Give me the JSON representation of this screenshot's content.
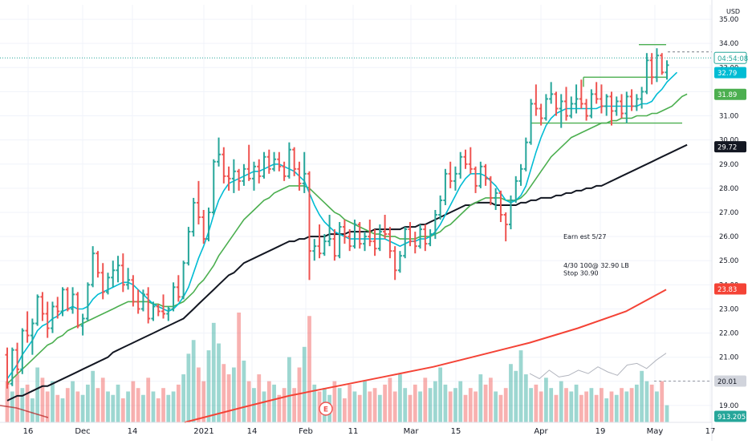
{
  "chart_data": {
    "type": "ohlc",
    "symbol_currency": "USD",
    "x_tick_labels": [
      "16",
      "Dec",
      "14",
      "2021",
      "14",
      "Feb",
      "11",
      "Mar",
      "15",
      "Apr",
      "19",
      "May",
      "17"
    ],
    "y_tick_labels": [
      "19.00",
      "20.00",
      "21.00",
      "22.00",
      "23.00",
      "24.00",
      "25.00",
      "26.00",
      "27.00",
      "28.00",
      "29.00",
      "30.00",
      "31.00",
      "32.00",
      "33.00",
      "34.00",
      "35.00"
    ],
    "ylim": [
      18.3,
      35.6
    ],
    "price_badges": [
      {
        "label": "04:54:08",
        "value": 33.4,
        "color": "#ffffff",
        "text_color": "#26a69a",
        "outline": true
      },
      {
        "label": "32.79",
        "value": 32.79,
        "color": "#00bcd4",
        "text_color": "#ffffff"
      },
      {
        "label": "31.89",
        "value": 31.89,
        "color": "#4caf50",
        "text_color": "#ffffff"
      },
      {
        "label": "29.72",
        "value": 29.72,
        "color": "#131722",
        "text_color": "#ffffff"
      },
      {
        "label": "23.83",
        "value": 23.83,
        "color": "#f44336",
        "text_color": "#ffffff"
      },
      {
        "label": "20.01",
        "value": 20.01,
        "color": "#d1d4dc",
        "text_color": "#131722"
      },
      {
        "label": "913.205K",
        "value": 18.55,
        "color": "#26a69a",
        "text_color": "#ffffff"
      }
    ],
    "annotations": [
      {
        "text": "Earn est 5/27",
        "value": 26.0
      },
      {
        "text": "4/30 100@ 32.90 LB",
        "value": 24.8
      },
      {
        "text": "Stop 30.90",
        "value": 24.5
      }
    ],
    "earnings_marker": "E",
    "bars": [
      [
        21.1,
        21.4,
        19.7,
        19.9
      ],
      [
        19.9,
        21.4,
        19.8,
        21.3
      ],
      [
        21.3,
        21.6,
        20.3,
        20.5
      ],
      [
        20.5,
        22.2,
        20.3,
        22.1
      ],
      [
        22.1,
        22.9,
        21.6,
        21.9
      ],
      [
        21.9,
        22.6,
        21.1,
        22.4
      ],
      [
        22.4,
        23.6,
        22.3,
        23.5
      ],
      [
        23.5,
        23.7,
        22.5,
        22.8
      ],
      [
        22.8,
        23.3,
        21.8,
        22.2
      ],
      [
        22.2,
        23.3,
        22.0,
        23.1
      ],
      [
        23.1,
        23.5,
        22.6,
        22.9
      ],
      [
        22.9,
        23.9,
        22.7,
        23.8
      ],
      [
        23.8,
        23.9,
        22.9,
        23.0
      ],
      [
        23.0,
        23.9,
        22.8,
        23.6
      ],
      [
        23.6,
        23.7,
        22.2,
        22.3
      ],
      [
        22.3,
        22.8,
        21.9,
        22.6
      ],
      [
        22.6,
        24.1,
        22.5,
        24.0
      ],
      [
        24.0,
        25.6,
        23.9,
        25.3
      ],
      [
        25.3,
        25.4,
        24.3,
        24.5
      ],
      [
        24.5,
        24.9,
        23.4,
        23.7
      ],
      [
        23.7,
        24.5,
        23.6,
        24.3
      ],
      [
        24.3,
        25.0,
        23.9,
        24.6
      ],
      [
        24.6,
        25.2,
        24.1,
        24.8
      ],
      [
        24.8,
        25.3,
        23.7,
        24.0
      ],
      [
        24.0,
        24.7,
        23.8,
        24.2
      ],
      [
        24.2,
        24.4,
        23.1,
        23.3
      ],
      [
        23.3,
        23.8,
        22.8,
        23.0
      ],
      [
        23.0,
        23.8,
        22.9,
        23.6
      ],
      [
        23.6,
        23.9,
        22.4,
        22.6
      ],
      [
        22.6,
        23.3,
        22.5,
        23.1
      ],
      [
        23.1,
        23.2,
        22.7,
        22.9
      ],
      [
        22.9,
        23.6,
        22.6,
        22.8
      ],
      [
        22.8,
        23.1,
        22.5,
        23.0
      ],
      [
        23.0,
        24.1,
        22.9,
        23.9
      ],
      [
        23.9,
        24.4,
        23.3,
        23.5
      ],
      [
        23.5,
        25.0,
        23.4,
        24.9
      ],
      [
        24.9,
        26.4,
        24.8,
        26.2
      ],
      [
        26.2,
        27.6,
        26.0,
        27.4
      ],
      [
        27.4,
        28.3,
        26.5,
        26.8
      ],
      [
        26.8,
        27.1,
        25.7,
        25.9
      ],
      [
        25.9,
        27.2,
        25.8,
        27.0
      ],
      [
        27.0,
        29.2,
        26.9,
        29.1
      ],
      [
        29.1,
        30.1,
        28.9,
        29.4
      ],
      [
        29.4,
        29.7,
        28.2,
        28.5
      ],
      [
        28.5,
        28.9,
        27.9,
        28.4
      ],
      [
        28.4,
        29.2,
        27.8,
        28.7
      ],
      [
        28.7,
        28.8,
        27.9,
        28.3
      ],
      [
        28.3,
        29.0,
        28.1,
        28.8
      ],
      [
        28.8,
        29.8,
        28.3,
        28.4
      ],
      [
        28.4,
        29.1,
        27.9,
        28.9
      ],
      [
        28.9,
        29.2,
        28.2,
        28.5
      ],
      [
        28.5,
        29.5,
        28.4,
        29.3
      ],
      [
        29.3,
        29.6,
        28.6,
        28.8
      ],
      [
        28.8,
        29.5,
        28.7,
        29.2
      ],
      [
        29.2,
        29.5,
        28.7,
        28.9
      ],
      [
        28.9,
        29.1,
        28.3,
        28.5
      ],
      [
        28.5,
        29.9,
        28.4,
        29.6
      ],
      [
        29.6,
        29.7,
        28.5,
        28.8
      ],
      [
        28.8,
        29.1,
        27.9,
        28.2
      ],
      [
        28.2,
        29.5,
        27.8,
        28.6
      ],
      [
        28.6,
        28.7,
        24.2,
        25.4
      ],
      [
        25.4,
        25.9,
        25.0,
        25.6
      ],
      [
        25.6,
        26.5,
        25.1,
        25.3
      ],
      [
        25.3,
        26.1,
        25.2,
        25.8
      ],
      [
        25.8,
        26.9,
        25.6,
        25.9
      ],
      [
        25.9,
        26.3,
        25.0,
        25.2
      ],
      [
        25.2,
        26.6,
        25.1,
        26.4
      ],
      [
        26.4,
        26.7,
        25.7,
        26.0
      ],
      [
        26.0,
        26.3,
        25.4,
        25.6
      ],
      [
        25.6,
        26.7,
        25.5,
        26.5
      ],
      [
        26.5,
        26.6,
        25.5,
        25.7
      ],
      [
        25.7,
        26.2,
        25.4,
        26.0
      ],
      [
        26.0,
        26.7,
        25.6,
        25.8
      ],
      [
        25.8,
        26.3,
        25.2,
        25.5
      ],
      [
        25.5,
        26.5,
        25.4,
        26.2
      ],
      [
        26.2,
        26.9,
        25.9,
        26.1
      ],
      [
        26.1,
        26.4,
        25.1,
        25.4
      ],
      [
        25.4,
        25.6,
        24.2,
        24.6
      ],
      [
        24.6,
        25.4,
        24.5,
        25.2
      ],
      [
        25.2,
        26.4,
        25.1,
        26.3
      ],
      [
        26.3,
        26.6,
        25.6,
        25.8
      ],
      [
        25.8,
        26.2,
        25.3,
        25.6
      ],
      [
        25.6,
        26.5,
        25.5,
        26.3
      ],
      [
        26.3,
        26.5,
        25.4,
        25.7
      ],
      [
        25.7,
        26.3,
        25.6,
        26.1
      ],
      [
        26.1,
        27.1,
        25.9,
        26.9
      ],
      [
        26.9,
        27.7,
        26.7,
        27.5
      ],
      [
        27.5,
        28.8,
        27.3,
        28.6
      ],
      [
        28.6,
        29.1,
        28.0,
        28.3
      ],
      [
        28.3,
        28.9,
        27.9,
        28.6
      ],
      [
        28.6,
        29.5,
        28.4,
        29.3
      ],
      [
        29.3,
        29.6,
        28.8,
        29.0
      ],
      [
        29.0,
        29.7,
        28.6,
        28.8
      ],
      [
        28.8,
        28.9,
        27.8,
        28.1
      ],
      [
        28.1,
        29.1,
        28.0,
        28.9
      ],
      [
        28.9,
        29.0,
        28.1,
        28.4
      ],
      [
        28.4,
        28.5,
        27.3,
        27.6
      ],
      [
        27.6,
        28.0,
        27.1,
        27.8
      ],
      [
        27.8,
        27.9,
        26.6,
        26.9
      ],
      [
        26.9,
        27.0,
        25.8,
        26.5
      ],
      [
        26.5,
        27.7,
        26.3,
        27.5
      ],
      [
        27.5,
        28.5,
        27.4,
        28.3
      ],
      [
        28.3,
        29.0,
        28.1,
        28.8
      ],
      [
        28.8,
        30.1,
        28.7,
        29.9
      ],
      [
        29.9,
        31.7,
        29.8,
        31.5
      ],
      [
        31.5,
        32.3,
        31.0,
        31.3
      ],
      [
        31.3,
        31.5,
        30.6,
        30.9
      ],
      [
        30.9,
        31.9,
        30.8,
        31.7
      ],
      [
        31.7,
        32.4,
        31.5,
        31.9
      ],
      [
        31.9,
        32.0,
        31.0,
        31.3
      ],
      [
        31.3,
        31.9,
        30.5,
        31.6
      ],
      [
        31.6,
        32.2,
        30.8,
        31.0
      ],
      [
        31.0,
        31.8,
        30.9,
        31.5
      ],
      [
        31.5,
        32.3,
        31.1,
        31.7
      ],
      [
        31.7,
        32.5,
        31.3,
        31.5
      ],
      [
        31.5,
        31.7,
        30.8,
        31.0
      ],
      [
        31.0,
        32.1,
        30.9,
        31.9
      ],
      [
        31.9,
        32.4,
        31.5,
        31.7
      ],
      [
        31.7,
        32.3,
        31.1,
        31.4
      ],
      [
        31.4,
        31.9,
        31.0,
        31.8
      ],
      [
        31.8,
        32.0,
        30.6,
        31.2
      ],
      [
        31.2,
        31.8,
        31.0,
        31.6
      ],
      [
        31.6,
        31.9,
        30.9,
        31.1
      ],
      [
        31.1,
        32.0,
        30.7,
        31.8
      ],
      [
        31.8,
        32.1,
        31.2,
        31.4
      ],
      [
        31.4,
        31.9,
        31.2,
        31.7
      ],
      [
        31.7,
        32.2,
        31.3,
        32.0
      ],
      [
        32.0,
        33.6,
        31.9,
        33.3
      ],
      [
        33.3,
        33.6,
        32.3,
        32.6
      ],
      [
        32.6,
        33.8,
        32.4,
        33.5
      ],
      [
        33.5,
        33.6,
        32.7,
        32.8
      ],
      [
        32.8,
        33.3,
        32.5,
        33.1
      ]
    ],
    "volume_max": 3200000,
    "volume": [
      1.2,
      0.9,
      1.4,
      1.0,
      1.1,
      0.7,
      1.6,
      1.3,
      0.9,
      1.2,
      0.8,
      0.7,
      1.0,
      1.2,
      0.9,
      0.8,
      1.1,
      1.5,
      1.0,
      1.3,
      0.9,
      0.8,
      1.1,
      0.7,
      0.9,
      1.2,
      1.0,
      0.8,
      1.3,
      0.9,
      0.7,
      1.0,
      0.8,
      0.9,
      1.1,
      1.4,
      2.0,
      2.4,
      1.6,
      1.2,
      2.1,
      2.9,
      2.3,
      1.7,
      1.4,
      1.6,
      3.2,
      1.8,
      1.2,
      1.0,
      1.4,
      0.9,
      1.2,
      1.1,
      0.8,
      1.0,
      1.9,
      1.0,
      1.6,
      2.2,
      3.1,
      1.1,
      0.9,
      1.0,
      0.8,
      1.2,
      1.0,
      0.7,
      1.1,
      0.9,
      0.8,
      1.2,
      0.9,
      1.0,
      0.8,
      1.1,
      1.3,
      0.9,
      1.4,
      1.0,
      0.8,
      1.1,
      0.9,
      1.3,
      1.0,
      1.2,
      1.6,
      1.1,
      0.9,
      1.0,
      1.2,
      0.8,
      1.0,
      0.9,
      1.4,
      1.1,
      1.3,
      0.9,
      0.8,
      1.0,
      1.7,
      1.5,
      2.1,
      1.4,
      1.0,
      1.1,
      0.9,
      1.3,
      1.0,
      0.8,
      1.2,
      1.0,
      0.9,
      1.1,
      0.8,
      0.9,
      1.0,
      0.8,
      1.0,
      0.7,
      0.9,
      0.8,
      1.0,
      0.9,
      1.0,
      1.1,
      1.5,
      1.2,
      1.1,
      0.9,
      1.2,
      0.5
    ],
    "sma_short": [
      20.1,
      20.4,
      20.7,
      21.1,
      21.4,
      21.7,
      22.1,
      22.3,
      22.4,
      22.6,
      22.7,
      22.9,
      23.0,
      23.1,
      23.0,
      23.0,
      23.1,
      23.4,
      23.6,
      23.7,
      23.8,
      23.9,
      24.0,
      24.1,
      24.1,
      24.0,
      23.8,
      23.6,
      23.4,
      23.2,
      23.1,
      23.0,
      22.9,
      23.0,
      23.2,
      23.5,
      23.9,
      24.5,
      25.1,
      25.6,
      26.2,
      26.9,
      27.5,
      27.9,
      28.2,
      28.3,
      28.4,
      28.5,
      28.6,
      28.7,
      28.7,
      28.8,
      28.9,
      29.0,
      29.0,
      28.9,
      28.8,
      28.7,
      28.5,
      28.3,
      27.8,
      27.3,
      26.9,
      26.6,
      26.4,
      26.2,
      26.1,
      26.0,
      25.9,
      25.9,
      25.9,
      25.9,
      25.9,
      25.9,
      25.9,
      25.9,
      25.8,
      25.7,
      25.6,
      25.7,
      25.8,
      25.8,
      25.9,
      25.9,
      26.0,
      26.2,
      26.5,
      26.9,
      27.3,
      27.7,
      28.1,
      28.4,
      28.6,
      28.6,
      28.6,
      28.5,
      28.3,
      28.1,
      27.8,
      27.5,
      27.4,
      27.5,
      27.7,
      28.1,
      28.8,
      29.5,
      30.1,
      30.6,
      30.9,
      31.1,
      31.2,
      31.3,
      31.3,
      31.3,
      31.3,
      31.3,
      31.3,
      31.3,
      31.4,
      31.4,
      31.4,
      31.4,
      31.4,
      31.4,
      31.4,
      31.4,
      31.5,
      31.5,
      31.6,
      31.9,
      32.1,
      32.4,
      32.6,
      32.8
    ],
    "sma_mid": [
      19.9,
      20.1,
      20.3,
      20.5,
      20.7,
      20.9,
      21.1,
      21.3,
      21.5,
      21.6,
      21.8,
      21.9,
      22.1,
      22.2,
      22.3,
      22.4,
      22.5,
      22.6,
      22.7,
      22.8,
      22.9,
      23.0,
      23.1,
      23.2,
      23.3,
      23.3,
      23.3,
      23.3,
      23.3,
      23.2,
      23.2,
      23.1,
      23.1,
      23.1,
      23.2,
      23.3,
      23.5,
      23.7,
      24.0,
      24.2,
      24.5,
      24.8,
      25.2,
      25.5,
      25.8,
      26.1,
      26.4,
      26.7,
      26.9,
      27.1,
      27.3,
      27.5,
      27.6,
      27.8,
      27.9,
      28.0,
      28.1,
      28.1,
      28.1,
      28.1,
      28.0,
      27.8,
      27.6,
      27.4,
      27.2,
      27.0,
      26.9,
      26.7,
      26.6,
      26.5,
      26.4,
      26.3,
      26.2,
      26.1,
      26.1,
      26.0,
      26.0,
      26.0,
      25.9,
      25.9,
      25.9,
      25.9,
      26.0,
      26.0,
      26.0,
      26.1,
      26.2,
      26.4,
      26.5,
      26.7,
      26.9,
      27.1,
      27.3,
      27.4,
      27.5,
      27.6,
      27.6,
      27.6,
      27.6,
      27.5,
      27.5,
      27.5,
      27.6,
      27.8,
      28.1,
      28.4,
      28.7,
      29.0,
      29.3,
      29.5,
      29.7,
      29.9,
      30.1,
      30.2,
      30.3,
      30.4,
      30.5,
      30.6,
      30.7,
      30.7,
      30.8,
      30.8,
      30.9,
      30.9,
      30.9,
      31.0,
      31.0,
      31.0,
      31.1,
      31.1,
      31.2,
      31.3,
      31.4,
      31.6,
      31.8,
      31.9
    ],
    "sma_long": [
      19.2,
      19.3,
      19.4,
      19.4,
      19.5,
      19.6,
      19.7,
      19.8,
      19.8,
      19.9,
      20.0,
      20.1,
      20.2,
      20.3,
      20.4,
      20.5,
      20.6,
      20.7,
      20.8,
      20.9,
      21.0,
      21.2,
      21.3,
      21.4,
      21.5,
      21.6,
      21.7,
      21.8,
      21.9,
      22.0,
      22.1,
      22.2,
      22.3,
      22.4,
      22.5,
      22.6,
      22.8,
      23.0,
      23.2,
      23.4,
      23.6,
      23.8,
      24.0,
      24.2,
      24.4,
      24.5,
      24.7,
      24.9,
      25.0,
      25.1,
      25.2,
      25.3,
      25.4,
      25.5,
      25.6,
      25.7,
      25.8,
      25.8,
      25.9,
      25.9,
      26.0,
      26.0,
      26.0,
      26.0,
      26.1,
      26.1,
      26.1,
      26.1,
      26.2,
      26.2,
      26.2,
      26.2,
      26.2,
      26.3,
      26.3,
      26.3,
      26.3,
      26.3,
      26.3,
      26.4,
      26.4,
      26.4,
      26.5,
      26.5,
      26.6,
      26.7,
      26.8,
      26.9,
      27.0,
      27.1,
      27.2,
      27.3,
      27.3,
      27.4,
      27.4,
      27.4,
      27.4,
      27.3,
      27.3,
      27.3,
      27.3,
      27.3,
      27.4,
      27.4,
      27.5,
      27.5,
      27.6,
      27.6,
      27.6,
      27.7,
      27.7,
      27.8,
      27.8,
      27.9,
      27.9,
      28.0,
      28.0,
      28.1,
      28.1,
      28.2,
      28.3,
      28.4,
      28.5,
      28.6,
      28.7,
      28.8,
      28.9,
      29.0,
      29.1,
      29.2,
      29.3,
      29.4,
      29.5,
      29.6,
      29.7,
      29.8
    ],
    "sma_200_points": [
      [
        0,
        19.0
      ],
      [
        60,
        18.5
      ],
      [
        120,
        18.3
      ],
      [
        180,
        18.3
      ],
      [
        240,
        18.5
      ],
      [
        300,
        19.1
      ],
      [
        360,
        19.5
      ],
      [
        420,
        19.9
      ],
      [
        480,
        20.2
      ],
      [
        540,
        20.6
      ],
      [
        600,
        21.0
      ],
      [
        660,
        21.4
      ],
      [
        720,
        21.9
      ],
      [
        780,
        22.5
      ],
      [
        829,
        23.0
      ]
    ],
    "sma_red_lower_points": [
      [
        0,
        19.0
      ],
      [
        20,
        18.9
      ],
      [
        40,
        18.7
      ],
      [
        60,
        18.5
      ]
    ],
    "levels": [
      {
        "name": "resistance-top",
        "value": 33.95,
        "x_from": 796,
        "x_to": 830,
        "color": "#4caf50"
      },
      {
        "name": "resistance-mid",
        "value": 32.6,
        "x_from": 727,
        "x_to": 830,
        "color": "#4caf50"
      },
      {
        "name": "support-low",
        "value": 30.7,
        "x_from": 661,
        "x_to": 850,
        "color": "#4caf50"
      }
    ],
    "current_price_line": 33.4,
    "volume_sma": [
      1.4,
      1.1,
      1.6,
      1.2,
      1.3,
      1.6,
      1.4,
      1.8,
      1.5,
      1.3,
      1.9,
      2.0,
      1.7,
      2.2,
      2.6
    ]
  }
}
